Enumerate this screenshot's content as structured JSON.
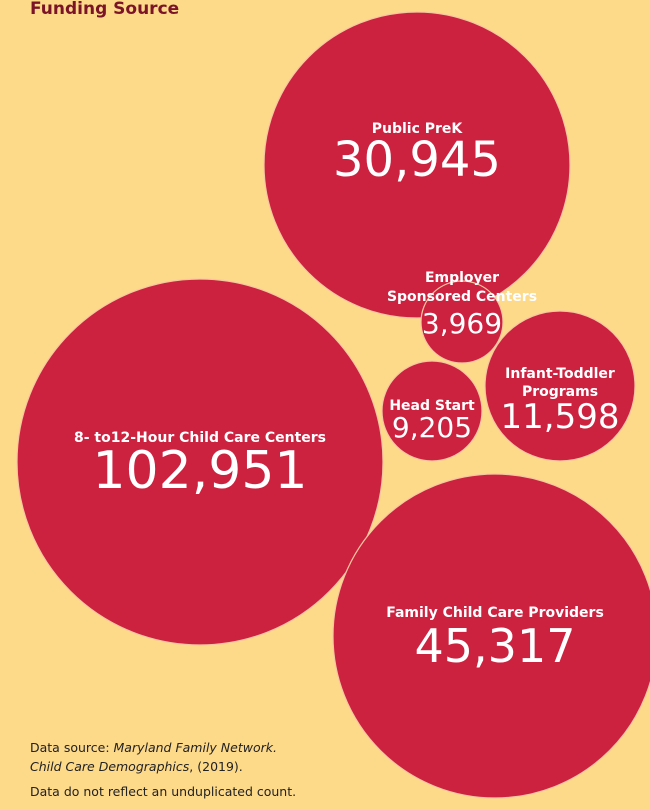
{
  "title": "Funding Source",
  "nodes": [
    {
      "label": [
        "Public PreK"
      ],
      "value": "30,945"
    },
    {
      "label": [
        "8- to12-Hour Child Care Centers"
      ],
      "value": "102,951"
    },
    {
      "label": [
        "Family Child Care Providers"
      ],
      "value": "45,317"
    },
    {
      "label": [
        "Infant-Toddler",
        "Programs"
      ],
      "value": "11,598"
    },
    {
      "label": [
        "Head Start"
      ],
      "value": "9,205"
    },
    {
      "label": [
        "Employer",
        "Sponsored Centers"
      ],
      "value": "3,969"
    }
  ],
  "footnote": {
    "source_prefix": "Data source: ",
    "source_name": "Maryland Family Network.",
    "source_title": "Child Care Demographics",
    "source_year": ", (2019).",
    "note": "Data do not reflect an unduplicated count."
  }
}
